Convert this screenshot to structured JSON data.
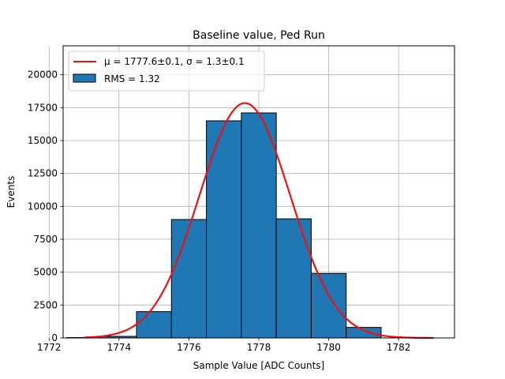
{
  "chart_data": {
    "type": "bar",
    "title": "Baseline value, Ped Run",
    "xlabel": "Sample Value [ADC Counts]",
    "ylabel": "Events",
    "xlim": [
      1772.4,
      1783.6
    ],
    "ylim": [
      0,
      22200
    ],
    "xticks": [
      1772,
      1774,
      1776,
      1778,
      1780,
      1782
    ],
    "yticks": [
      0,
      2500,
      5000,
      7500,
      10000,
      12500,
      15000,
      17500,
      20000
    ],
    "grid": true,
    "legend_position": "top-left",
    "bin_width": 1,
    "bins": [
      {
        "center": 1773,
        "count": 30
      },
      {
        "center": 1774,
        "count": 120
      },
      {
        "center": 1775,
        "count": 2000
      },
      {
        "center": 1776,
        "count": 9000
      },
      {
        "center": 1777,
        "count": 16500
      },
      {
        "center": 1778,
        "count": 17100
      },
      {
        "center": 1779,
        "count": 9050
      },
      {
        "center": 1780,
        "count": 4900
      },
      {
        "center": 1781,
        "count": 800
      }
    ],
    "fit": {
      "type": "gaussian",
      "mu": 1777.6,
      "sigma": 1.3,
      "amplitude": 17850,
      "x_range": [
        1773,
        1783
      ]
    },
    "series": [
      {
        "name": "μ = 1777.6±0.1, σ = 1.3±0.1",
        "kind": "line",
        "color": "#ee1111"
      },
      {
        "name": "RMS = 1.32",
        "kind": "bar",
        "color": "#1f77b4"
      }
    ]
  }
}
